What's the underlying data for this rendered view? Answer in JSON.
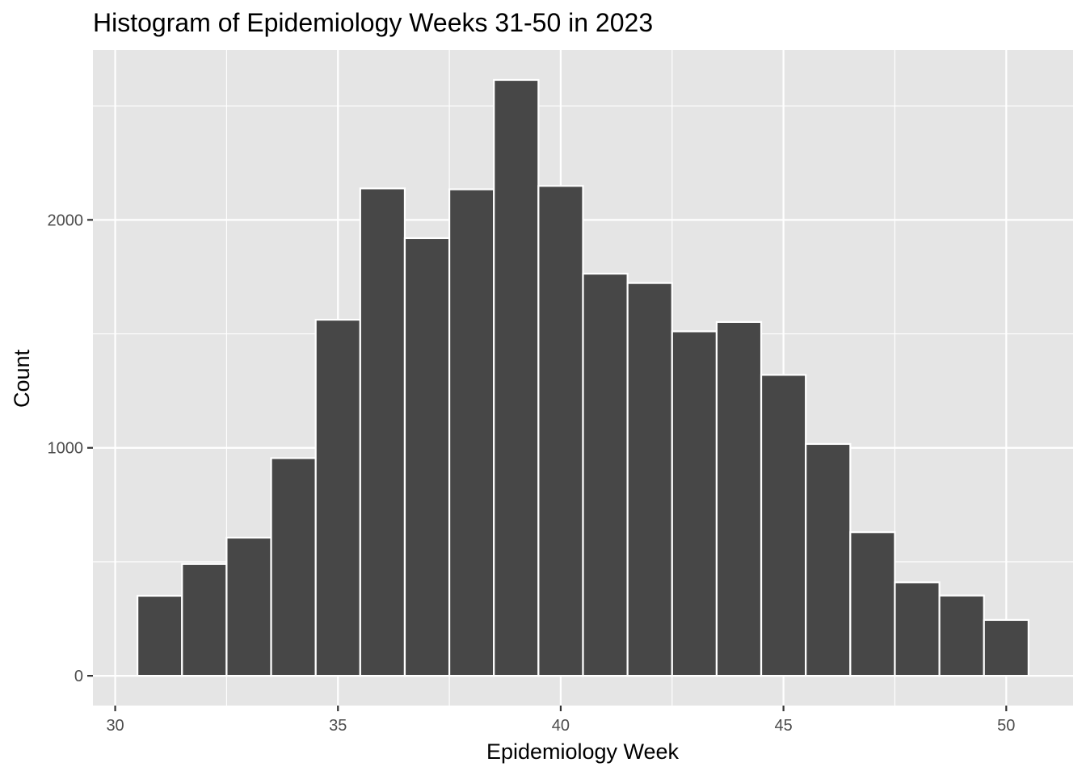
{
  "chart_data": {
    "type": "bar",
    "title": "Histogram of Epidemiology Weeks 31-50 in 2023",
    "xlabel": "Epidemiology Week",
    "ylabel": "Count",
    "x": [
      31,
      32,
      33,
      34,
      35,
      36,
      37,
      38,
      39,
      40,
      41,
      42,
      43,
      44,
      45,
      46,
      47,
      48,
      49,
      50
    ],
    "values": [
      351,
      490,
      606,
      955,
      1562,
      2138,
      1920,
      2134,
      2614,
      2149,
      1764,
      1723,
      1511,
      1552,
      1320,
      1017,
      630,
      410,
      352,
      245
    ],
    "bin_width": 1,
    "xlim": [
      29.5,
      51.5
    ],
    "ylim": [
      -130.7,
      2745
    ],
    "x_ticks": [
      30,
      35,
      40,
      45,
      50
    ],
    "y_ticks": [
      0,
      1000,
      2000
    ],
    "grid": true,
    "panel_color": "#e5e5e5",
    "bar_fill": "#474747",
    "bar_outline": "#ffffff"
  }
}
